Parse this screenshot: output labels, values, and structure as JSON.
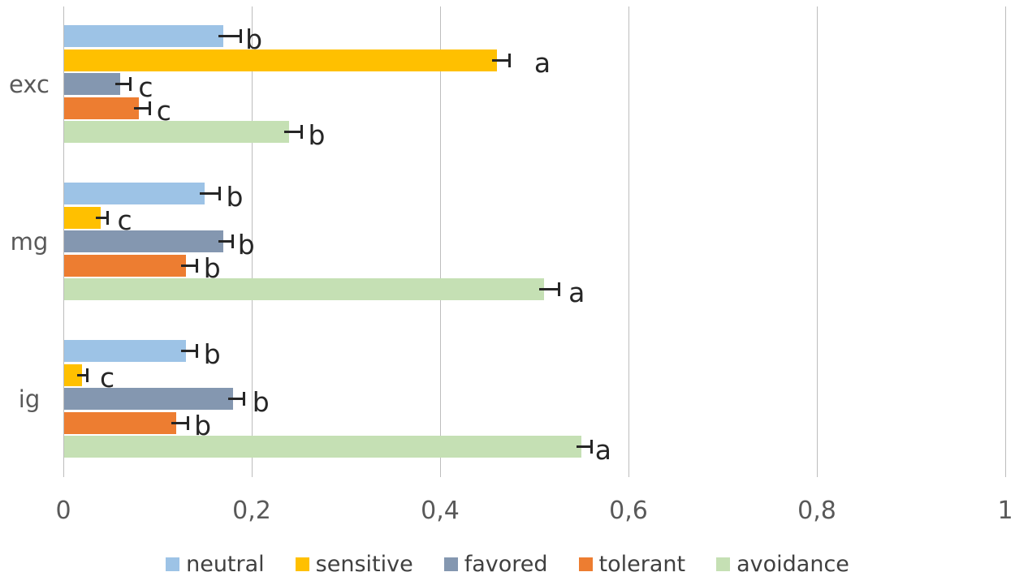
{
  "chart_data": {
    "type": "bar",
    "orientation": "horizontal",
    "title": "",
    "xlabel": "",
    "ylabel": "",
    "xlim": [
      0,
      1
    ],
    "grid": true,
    "legend_position": "bottom",
    "categories": [
      "exc",
      "mg",
      "ig"
    ],
    "x_ticks": [
      {
        "label": "0",
        "value": 0
      },
      {
        "label": "0,2",
        "value": 0.2
      },
      {
        "label": "0,4",
        "value": 0.4
      },
      {
        "label": "0,6",
        "value": 0.6
      },
      {
        "label": "0,8",
        "value": 0.8
      },
      {
        "label": "1",
        "value": 1
      }
    ],
    "series": [
      {
        "name": "neutral",
        "color": "#9DC3E6",
        "values": [
          0.17,
          0.15,
          0.13
        ],
        "errors": [
          0.018,
          0.016,
          0.012
        ],
        "letters": [
          "b",
          "b",
          "b"
        ],
        "letter_gaps": [
          6,
          8,
          8
        ]
      },
      {
        "name": "sensitive",
        "color": "#FFC000",
        "values": [
          0.46,
          0.04,
          0.02
        ],
        "errors": [
          0.014,
          0.007,
          0.005
        ],
        "letters": [
          "a",
          "c",
          "c"
        ],
        "letter_gaps": [
          30,
          12,
          16
        ]
      },
      {
        "name": "favored",
        "color": "#8497B0",
        "values": [
          0.06,
          0.17,
          0.18
        ],
        "errors": [
          0.011,
          0.01,
          0.012
        ],
        "letters": [
          "c",
          "b",
          "b"
        ],
        "letter_gaps": [
          10,
          6,
          10
        ]
      },
      {
        "name": "tolerant",
        "color": "#ED7D31",
        "values": [
          0.08,
          0.13,
          0.12
        ],
        "errors": [
          0.012,
          0.012,
          0.012
        ],
        "letters": [
          "c",
          "b",
          "b"
        ],
        "letter_gaps": [
          8,
          8,
          8
        ]
      },
      {
        "name": "avoidance",
        "color": "#C5E0B4",
        "values": [
          0.24,
          0.51,
          0.55
        ],
        "errors": [
          0.013,
          0.016,
          0.011
        ],
        "letters": [
          "b",
          "a",
          "a"
        ],
        "letter_gaps": [
          8,
          12,
          4
        ]
      }
    ],
    "colors": {
      "gridline": "#BDBDBD",
      "axis_text": "#595959",
      "letter_text": "#262626",
      "legend_text": "#404040",
      "background": "#FFFFFF"
    }
  },
  "layout_note": "grouped horizontal bar chart with error bars and significance letters"
}
